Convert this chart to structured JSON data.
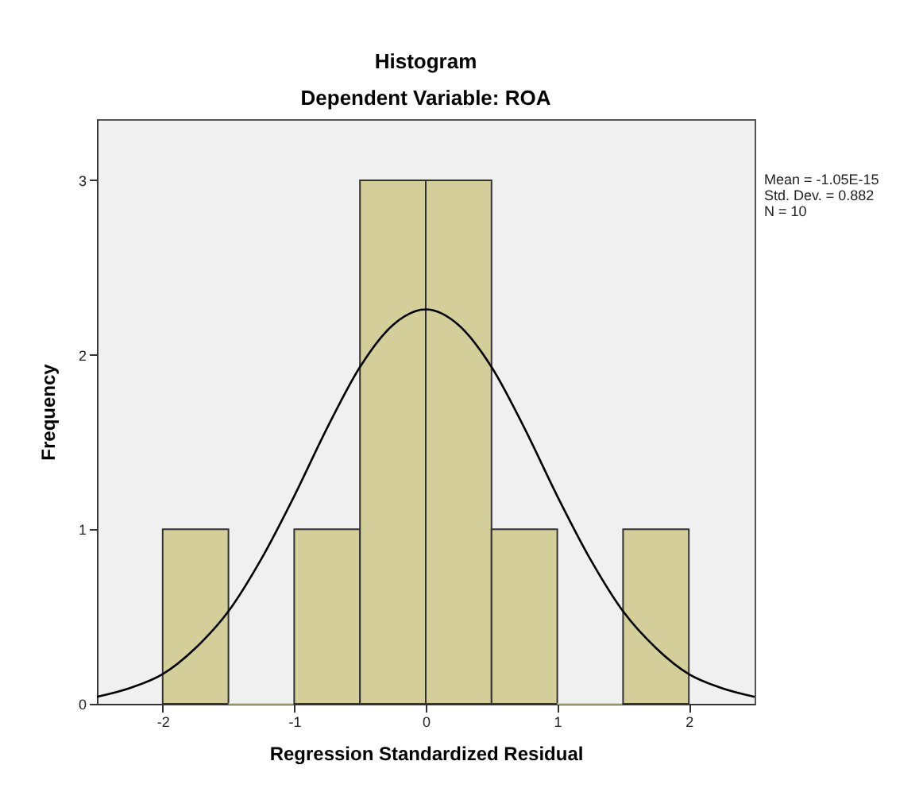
{
  "chart_data": {
    "type": "histogram",
    "title": "Histogram",
    "subtitle": "Dependent Variable: ROA",
    "xlabel": "Regression Standardized Residual",
    "ylabel": "Frequency",
    "bins": [
      -2,
      -1.5,
      -1,
      -0.5,
      0,
      0.5,
      1,
      1.5,
      2
    ],
    "values": [
      1,
      0,
      1,
      3,
      3,
      1,
      0,
      1
    ],
    "color": "#d3ce9a",
    "series": [
      {
        "type": "line",
        "color": "#000000",
        "x": [
          -2.5,
          -2.25,
          -2,
          -1.75,
          -1.5,
          -1.25,
          -1,
          -0.75,
          -0.5,
          -0.25,
          0,
          0.25,
          0.5,
          0.75,
          1,
          1.25,
          1.5,
          1.75,
          2,
          2.25,
          2.5
        ],
        "values": [
          0.04,
          0.09,
          0.17,
          0.32,
          0.53,
          0.83,
          1.19,
          1.58,
          1.93,
          2.17,
          2.26,
          2.17,
          1.93,
          1.58,
          1.19,
          0.83,
          0.53,
          0.32,
          0.17,
          0.09,
          0.04
        ]
      }
    ],
    "xlim": [
      -2.5,
      2.5
    ],
    "xticks": [
      -2,
      -1,
      0,
      1,
      2
    ],
    "ylim": [
      0,
      3.35
    ],
    "yticks": [
      0,
      1,
      2,
      3
    ],
    "grid": false,
    "annotations": [
      "Mean = -1.05E-15",
      "Std. Dev. = 0.882",
      "N = 10"
    ]
  }
}
